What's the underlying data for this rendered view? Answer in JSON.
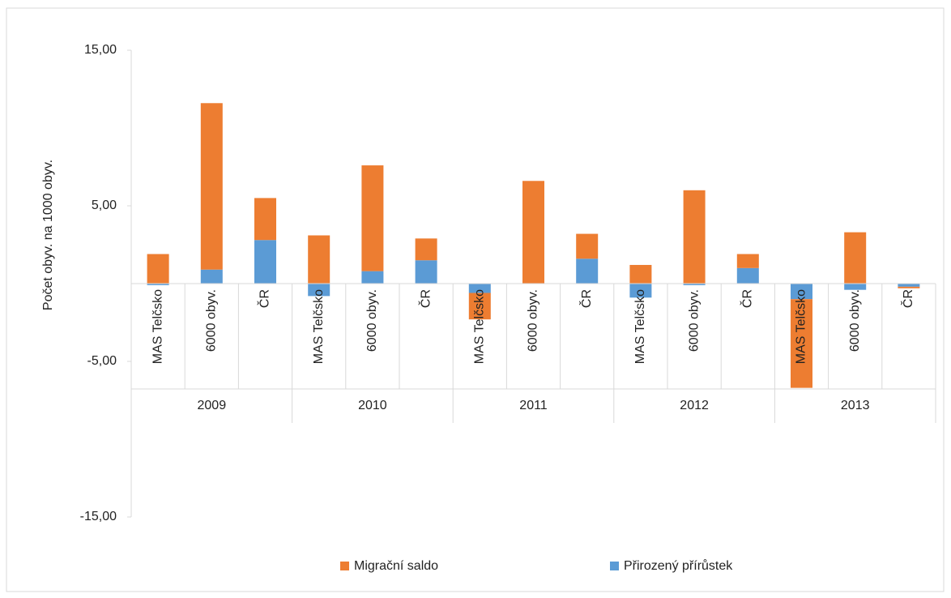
{
  "chart_data": {
    "type": "stacked-bar",
    "y_label": "Počet obyv. na 1000 obyv.",
    "groups": [
      "2009",
      "2010",
      "2011",
      "2012",
      "2013"
    ],
    "categories": [
      "MAS Telčsko",
      "6000 obyv.",
      "ČR",
      "MAS Telčsko",
      "6000 obyv.",
      "ČR",
      "MAS Telčsko",
      "6000 obyv.",
      "ČR",
      "MAS Telčsko",
      "6000 obyv.",
      "ČR",
      "MAS Telčsko",
      "6000 obyv.",
      "ČR"
    ],
    "series": [
      {
        "name": "Migrační saldo",
        "color": "#ed7d31",
        "values": [
          1.9,
          10.7,
          2.7,
          3.1,
          6.8,
          1.4,
          -1.7,
          6.6,
          1.6,
          1.2,
          6.0,
          0.9,
          -5.7,
          3.3,
          -0.1
        ]
      },
      {
        "name": "Přirozený přírůstek",
        "color": "#5b9bd5",
        "values": [
          -0.1,
          0.9,
          2.8,
          -0.8,
          0.8,
          1.5,
          -0.6,
          0.0,
          1.6,
          -0.9,
          -0.1,
          1.0,
          -1.0,
          -0.4,
          -0.2
        ]
      }
    ],
    "ylim": [
      -15,
      15
    ],
    "yticks": [
      {
        "value": -15,
        "label": "-15,00"
      },
      {
        "value": -5,
        "label": "-5,00"
      },
      {
        "value": 5,
        "label": "5,00"
      },
      {
        "value": 15,
        "label": "15,00"
      }
    ],
    "grid": false,
    "legend": "bottom"
  }
}
